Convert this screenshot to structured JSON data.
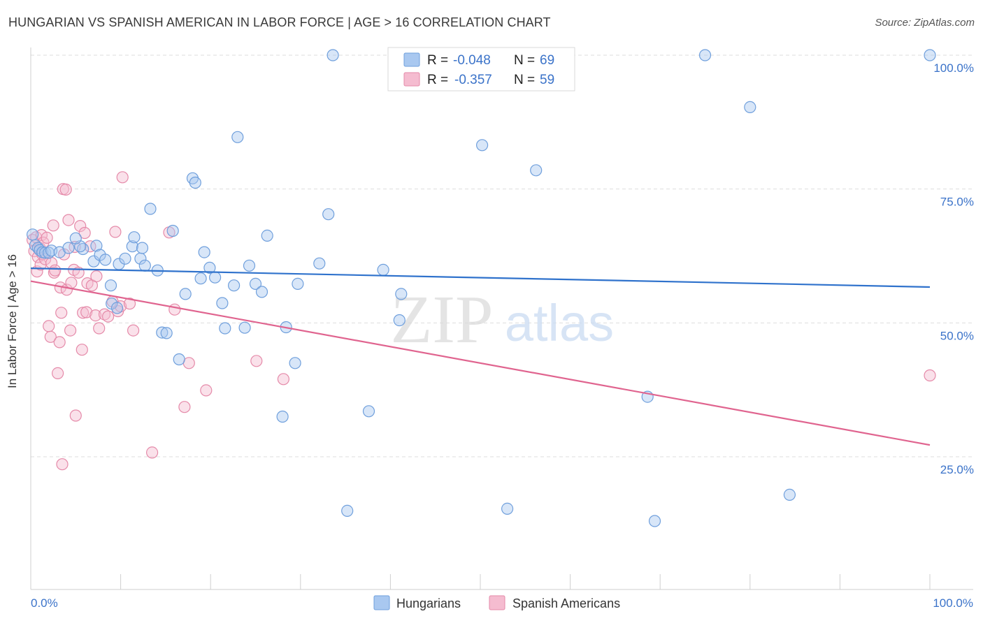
{
  "title": "HUNGARIAN VS SPANISH AMERICAN IN LABOR FORCE | AGE > 16 CORRELATION CHART",
  "source": "Source: ZipAtlas.com",
  "watermark": {
    "part1": "ZIP",
    "part2": "atlas"
  },
  "colors": {
    "blue_fill": "#a9c8f0",
    "blue_stroke": "#6f9fdc",
    "blue_line": "#2f72cc",
    "pink_fill": "#f5bcd0",
    "pink_stroke": "#e58aa9",
    "pink_line": "#e0648f",
    "axis_text": "#3b73c9",
    "grid": "#dddddd"
  },
  "legend": {
    "rows": [
      {
        "r_label": "R =",
        "r_value": "-0.048",
        "n_label": "N =",
        "n_value": "69"
      },
      {
        "r_label": "R =",
        "r_value": "-0.357",
        "n_label": "N =",
        "n_value": "59"
      }
    ]
  },
  "chart_data": {
    "type": "scatter",
    "title": "HUNGARIAN VS SPANISH AMERICAN IN LABOR FORCE | AGE > 16 CORRELATION CHART",
    "xlabel": "",
    "ylabel": "In Labor Force | Age > 16",
    "xlim": [
      0,
      100
    ],
    "ylim": [
      0,
      102
    ],
    "x_tick_labels": [
      "0.0%",
      "100.0%"
    ],
    "y_ticks": [
      25,
      50,
      75,
      100
    ],
    "y_tick_labels": [
      "25.0%",
      "50.0%",
      "75.0%",
      "100.0%"
    ],
    "grid": true,
    "series": [
      {
        "name": "Hungarians",
        "trend": {
          "x0": 0,
          "y0": 60.2,
          "x1": 100,
          "y1": 56.7
        },
        "points": [
          [
            0.2,
            66.5
          ],
          [
            0.5,
            64.5
          ],
          [
            0.8,
            64.0
          ],
          [
            1.0,
            63.6
          ],
          [
            1.3,
            63.2
          ],
          [
            1.6,
            63.1
          ],
          [
            2.0,
            63.1
          ],
          [
            2.3,
            63.5
          ],
          [
            3.2,
            63.2
          ],
          [
            4.2,
            64.0
          ],
          [
            5.8,
            63.8
          ],
          [
            5.5,
            64.3
          ],
          [
            5.0,
            65.8
          ],
          [
            7.3,
            64.4
          ],
          [
            7.0,
            61.5
          ],
          [
            7.7,
            62.7
          ],
          [
            8.3,
            61.8
          ],
          [
            8.9,
            57.0
          ],
          [
            9.0,
            53.6
          ],
          [
            9.6,
            52.8
          ],
          [
            9.8,
            61.0
          ],
          [
            10.5,
            62.0
          ],
          [
            11.3,
            64.3
          ],
          [
            11.5,
            66.0
          ],
          [
            12.2,
            62.0
          ],
          [
            12.4,
            64.0
          ],
          [
            12.7,
            60.7
          ],
          [
            13.3,
            71.3
          ],
          [
            14.1,
            59.8
          ],
          [
            14.6,
            48.2
          ],
          [
            15.1,
            48.1
          ],
          [
            15.8,
            67.2
          ],
          [
            16.5,
            43.2
          ],
          [
            17.2,
            55.4
          ],
          [
            18.0,
            77.0
          ],
          [
            18.3,
            76.2
          ],
          [
            18.9,
            58.3
          ],
          [
            19.3,
            63.2
          ],
          [
            19.9,
            60.3
          ],
          [
            20.5,
            58.5
          ],
          [
            21.3,
            53.7
          ],
          [
            21.6,
            49.0
          ],
          [
            22.6,
            57.0
          ],
          [
            23.0,
            84.7
          ],
          [
            23.8,
            49.1
          ],
          [
            24.3,
            60.7
          ],
          [
            25.0,
            57.3
          ],
          [
            25.7,
            55.8
          ],
          [
            26.3,
            66.3
          ],
          [
            28.0,
            32.5
          ],
          [
            28.4,
            49.2
          ],
          [
            29.4,
            42.5
          ],
          [
            29.7,
            57.3
          ],
          [
            32.1,
            61.1
          ],
          [
            33.1,
            70.3
          ],
          [
            33.6,
            100.0
          ],
          [
            35.2,
            14.9
          ],
          [
            37.6,
            33.5
          ],
          [
            39.2,
            59.9
          ],
          [
            41.0,
            50.5
          ],
          [
            41.2,
            55.4
          ],
          [
            50.2,
            83.2
          ],
          [
            53.0,
            15.3
          ],
          [
            56.2,
            78.5
          ],
          [
            68.6,
            36.2
          ],
          [
            69.4,
            13.0
          ],
          [
            75.0,
            100.0
          ],
          [
            80.0,
            90.3
          ],
          [
            84.4,
            17.9
          ],
          [
            100.0,
            100.0
          ]
        ]
      },
      {
        "name": "Spanish Americans",
        "trend": {
          "x0": 0,
          "y0": 57.8,
          "x1": 100,
          "y1": 27.2
        },
        "points": [
          [
            0.2,
            65.5
          ],
          [
            0.4,
            63.4
          ],
          [
            0.6,
            66.0
          ],
          [
            0.7,
            59.6
          ],
          [
            0.8,
            62.3
          ],
          [
            1.0,
            64.0
          ],
          [
            1.1,
            60.9
          ],
          [
            1.2,
            66.4
          ],
          [
            1.3,
            62.8
          ],
          [
            1.4,
            65.0
          ],
          [
            1.6,
            61.9
          ],
          [
            1.8,
            65.9
          ],
          [
            2.0,
            49.4
          ],
          [
            2.2,
            47.4
          ],
          [
            2.3,
            61.2
          ],
          [
            2.5,
            68.2
          ],
          [
            2.6,
            59.4
          ],
          [
            2.7,
            59.8
          ],
          [
            3.0,
            40.6
          ],
          [
            3.2,
            46.4
          ],
          [
            3.3,
            56.6
          ],
          [
            3.4,
            51.9
          ],
          [
            3.5,
            23.6
          ],
          [
            3.6,
            75.0
          ],
          [
            3.7,
            62.8
          ],
          [
            3.9,
            74.9
          ],
          [
            4.0,
            56.2
          ],
          [
            4.2,
            69.2
          ],
          [
            4.4,
            48.6
          ],
          [
            4.5,
            57.5
          ],
          [
            4.8,
            59.9
          ],
          [
            4.9,
            64.2
          ],
          [
            5.0,
            32.7
          ],
          [
            5.3,
            59.4
          ],
          [
            5.5,
            68.1
          ],
          [
            5.7,
            45.0
          ],
          [
            5.8,
            51.9
          ],
          [
            6.0,
            66.8
          ],
          [
            6.2,
            52.0
          ],
          [
            6.3,
            57.4
          ],
          [
            6.6,
            64.3
          ],
          [
            6.8,
            57.0
          ],
          [
            7.2,
            51.4
          ],
          [
            7.3,
            58.7
          ],
          [
            7.6,
            49.0
          ],
          [
            8.2,
            51.6
          ],
          [
            8.6,
            51.2
          ],
          [
            9.1,
            54.0
          ],
          [
            9.4,
            67.0
          ],
          [
            9.7,
            52.2
          ],
          [
            10.0,
            53.1
          ],
          [
            10.2,
            77.2
          ],
          [
            11.0,
            53.6
          ],
          [
            11.4,
            48.6
          ],
          [
            13.5,
            25.8
          ],
          [
            15.4,
            66.9
          ],
          [
            16.0,
            52.5
          ],
          [
            17.1,
            34.3
          ],
          [
            17.6,
            42.5
          ],
          [
            19.5,
            37.4
          ],
          [
            25.1,
            42.9
          ],
          [
            28.1,
            39.5
          ],
          [
            100.0,
            40.2
          ]
        ]
      }
    ]
  },
  "bottom_legend": {
    "items": [
      {
        "label": "Hungarians"
      },
      {
        "label": "Spanish Americans"
      }
    ]
  }
}
